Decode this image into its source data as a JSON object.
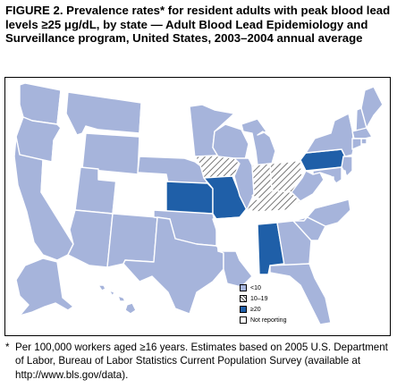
{
  "figure": {
    "title": "FIGURE 2. Prevalence rates* for resident adults with peak blood lead levels ≥25 μg/dL, by state — Adult Blood Lead Epidemiology and Surveillance program, United States, 2003–2004 annual average"
  },
  "legend": {
    "items": [
      {
        "key": "lt10",
        "label": "<10",
        "color": "#a6b4db"
      },
      {
        "key": "10to19",
        "label": "10–19",
        "color": "hatch"
      },
      {
        "key": "ge20",
        "label": "≥20",
        "color": "#1f5fa8"
      },
      {
        "key": "nr",
        "label": "Not reporting",
        "color": "#ffffff"
      }
    ]
  },
  "colors": {
    "lt10": "#a6b4db",
    "ge20": "#1f5fa8",
    "nr": "#ffffff",
    "hatch_line": "#555555"
  },
  "states": {
    "WA": "lt10",
    "OR": "lt10",
    "CA": "lt10",
    "ID": "nr",
    "NV": "nr",
    "MT": "lt10",
    "WY": "lt10",
    "UT": "lt10",
    "AZ": "lt10",
    "CO": "nr",
    "NM": "lt10",
    "ND": "nr",
    "SD": "nr",
    "NE": "lt10",
    "KS": "ge20",
    "OK": "lt10",
    "TX": "lt10",
    "MN": "lt10",
    "IA": "10to19",
    "MO": "ge20",
    "AR": "nr",
    "LA": "lt10",
    "WI": "lt10",
    "IL": "lt10",
    "MI": "lt10",
    "IN": "10to19",
    "OH": "10to19",
    "KY": "10to19",
    "TN": "nr",
    "MS": "nr",
    "AL": "ge20",
    "GA": "lt10",
    "FL": "lt10",
    "SC": "lt10",
    "NC": "lt10",
    "VA": "nr",
    "WV": "lt10",
    "PA": "ge20",
    "NY": "lt10",
    "VT": "nr",
    "NH": "lt10",
    "ME": "lt10",
    "MA": "lt10",
    "RI": "lt10",
    "CT": "lt10",
    "NJ": "lt10",
    "DE": "nr",
    "MD": "lt10",
    "DC": "nr",
    "AK": "lt10",
    "HI": "lt10"
  },
  "footnote": {
    "marker": "*",
    "text": "Per 100,000 workers aged ≥16 years. Estimates based on 2005 U.S. Department of Labor, Bureau of Labor Statistics Current Population Survey (available at http://www.bls.gov/data)."
  }
}
